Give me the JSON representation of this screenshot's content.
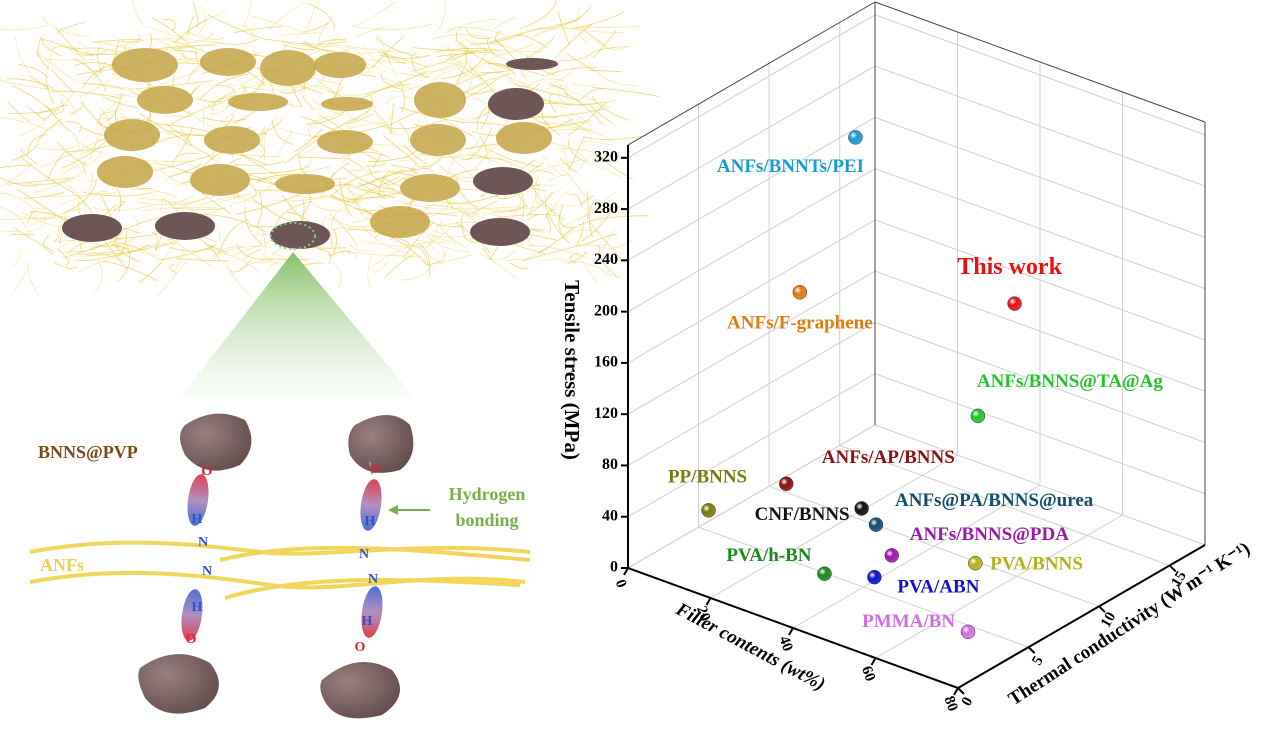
{
  "illustration": {
    "bnns_label": "BNNS@PVP",
    "hbond_label": [
      "Hydrogen",
      "bonding"
    ],
    "anf_label": "ANFs",
    "left_chain": [
      "O",
      "H",
      "N",
      "N",
      "H",
      "O"
    ],
    "right_chain": [
      "O",
      "H",
      "N",
      "N",
      "H",
      "O"
    ]
  },
  "chart_data": {
    "type": "scatter3d",
    "x_label": "Filler contents (wt%)",
    "y_label": "Thermal conductivity (W m⁻¹ K⁻¹)",
    "z_label": "Tensile stress (MPa)",
    "xlim": [
      0,
      80
    ],
    "ylim": [
      0,
      17.5
    ],
    "zlim": [
      0,
      330
    ],
    "xticks": [
      0,
      20,
      40,
      60,
      80
    ],
    "yticks": [
      0,
      5,
      10,
      15
    ],
    "zticks": [
      0,
      40,
      80,
      120,
      160,
      200,
      240,
      280,
      320
    ],
    "grid": true,
    "points": [
      {
        "name": "ANFs/BNNTs/PEI",
        "color": "#1a9ad6",
        "x": 24,
        "y": 9.1,
        "z": 306
      },
      {
        "name": "ANFs/F-graphene",
        "color": "#e07b10",
        "x": 16,
        "y": 7.5,
        "z": 186
      },
      {
        "name": "This work",
        "color": "#e81010",
        "x": 40,
        "y": 15.7,
        "z": 153
      },
      {
        "name": "ANFs/BNNS@TA@Ag",
        "color": "#22c42a",
        "x": 40,
        "y": 13.1,
        "z": 82
      },
      {
        "name": "ANFs/AP/BNNS",
        "color": "#8b1010",
        "x": 24,
        "y": 4.2,
        "z": 67
      },
      {
        "name": "PP/BNNS",
        "color": "#7a7a10",
        "x": 12,
        "y": 2.2,
        "z": 45
      },
      {
        "name": "CNF/BNNS",
        "color": "#111111",
        "x": 32,
        "y": 7.2,
        "z": 38
      },
      {
        "name": "ANFs@PA/BNNS@urea",
        "color": "#124d6e",
        "x": 36,
        "y": 7.05,
        "z": 31
      },
      {
        "name": "ANFs/BNNS@PDA",
        "color": "#9a1aae",
        "x": 40,
        "y": 7.0,
        "z": 12
      },
      {
        "name": "PVA/BNNS",
        "color": "#b6b020",
        "x": 64,
        "y": 5.9,
        "z": 41
      },
      {
        "name": "PVA/h-BN",
        "color": "#1a8a1a",
        "x": 36,
        "y": 3.4,
        "z": 16
      },
      {
        "name": "PVA/ABN",
        "color": "#1010d0",
        "x": 44,
        "y": 4.6,
        "z": 15
      },
      {
        "name": "PMMA/BN",
        "color": "#d070e0",
        "x": 72,
        "y": 3.05,
        "z": 15
      }
    ]
  }
}
